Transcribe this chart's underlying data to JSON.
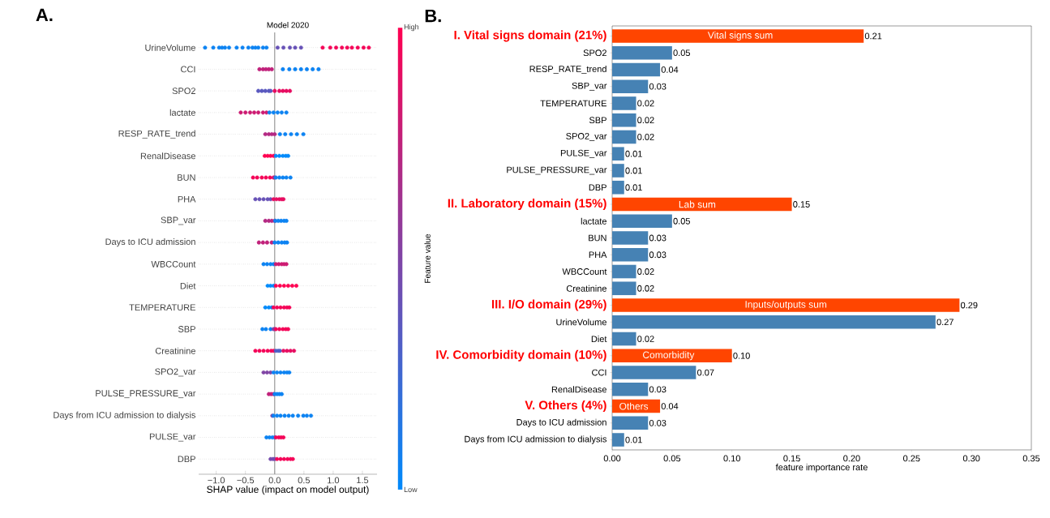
{
  "chart_data": [
    {
      "type": "scatter",
      "title": "Model 2020",
      "xlabel": "SHAP value (impact on model output)",
      "clabel": "Feature value",
      "annotations": [
        "A."
      ],
      "orientation": "horizontal",
      "marker": "circle",
      "grid": "y",
      "categories": [
        "UrineVolume",
        "CCI",
        "SPO2",
        "lactate",
        "RESP_RATE_trend",
        "RenalDisease",
        "BUN",
        "PHA",
        "SBP_var",
        "Days to ICU admission",
        "WBCCount",
        "Diet",
        "TEMPERATURE",
        "SBP",
        "Creatinine",
        "SPO2_var",
        "PULSE_PRESSURE_var",
        "Days from ICU admission to dialysis",
        "PULSE_var",
        "DBP"
      ],
      "xlim": [
        -1.3,
        1.75
      ],
      "xticks": [
        {
          "value": -1,
          "label": "−1.0"
        },
        {
          "value": -0.5,
          "label": "−0.5"
        },
        {
          "value": 0,
          "label": "0.0"
        },
        {
          "value": 0.5,
          "label": "0.5"
        },
        {
          "value": 1,
          "label": "1.0"
        },
        {
          "value": 1.5,
          "label": "1.5"
        }
      ],
      "clim": [
        0,
        1
      ],
      "cticks": [
        {
          "value": 0,
          "label": "Low"
        },
        {
          "value": 1,
          "label": "High"
        }
      ],
      "ref_lines": [
        {
          "axis": "x",
          "value": 0,
          "color": "#999999"
        }
      ],
      "series": [
        {
          "x": [
            "UrineVolume",
            "UrineVolume",
            "UrineVolume",
            "UrineVolume",
            "UrineVolume",
            "UrineVolume",
            "UrineVolume",
            "UrineVolume",
            "UrineVolume",
            "UrineVolume",
            "UrineVolume",
            "UrineVolume",
            "UrineVolume",
            "UrineVolume",
            "UrineVolume",
            "UrineVolume",
            "UrineVolume",
            "UrineVolume",
            "UrineVolume",
            "UrineVolume",
            "UrineVolume",
            "UrineVolume",
            "UrineVolume",
            "UrineVolume",
            "UrineVolume",
            "UrineVolume",
            "UrineVolume",
            "UrineVolume",
            "CCI",
            "CCI",
            "CCI",
            "CCI",
            "CCI",
            "CCI",
            "CCI",
            "CCI",
            "CCI",
            "CCI",
            "CCI",
            "CCI",
            "SPO2",
            "SPO2",
            "SPO2",
            "SPO2",
            "SPO2",
            "SPO2",
            "SPO2",
            "SPO2",
            "SPO2",
            "SPO2",
            "lactate",
            "lactate",
            "lactate",
            "lactate",
            "lactate",
            "lactate",
            "lactate",
            "lactate",
            "lactate",
            "lactate",
            "lactate",
            "lactate",
            "RESP_RATE_trend",
            "RESP_RATE_trend",
            "RESP_RATE_trend",
            "RESP_RATE_trend",
            "RESP_RATE_trend",
            "RESP_RATE_trend",
            "RESP_RATE_trend",
            "RESP_RATE_trend",
            "RESP_RATE_trend",
            "RenalDisease",
            "RenalDisease",
            "RenalDisease",
            "RenalDisease",
            "RenalDisease",
            "RenalDisease",
            "RenalDisease",
            "RenalDisease",
            "RenalDisease",
            "BUN",
            "BUN",
            "BUN",
            "BUN",
            "BUN",
            "BUN",
            "BUN",
            "BUN",
            "BUN",
            "BUN",
            "BUN",
            "BUN",
            "PHA",
            "PHA",
            "PHA",
            "PHA",
            "PHA",
            "PHA",
            "PHA",
            "PHA",
            "PHA",
            "PHA",
            "SBP_var",
            "SBP_var",
            "SBP_var",
            "SBP_var",
            "SBP_var",
            "SBP_var",
            "SBP_var",
            "SBP_var",
            "SBP_var",
            "Days to ICU admission",
            "Days to ICU admission",
            "Days to ICU admission",
            "Days to ICU admission",
            "Days to ICU admission",
            "Days to ICU admission",
            "Days to ICU admission",
            "Days to ICU admission",
            "Days to ICU admission",
            "WBCCount",
            "WBCCount",
            "WBCCount",
            "WBCCount",
            "WBCCount",
            "WBCCount",
            "WBCCount",
            "WBCCount",
            "WBCCount",
            "Diet",
            "Diet",
            "Diet",
            "Diet",
            "Diet",
            "Diet",
            "Diet",
            "Diet",
            "Diet",
            "TEMPERATURE",
            "TEMPERATURE",
            "TEMPERATURE",
            "TEMPERATURE",
            "TEMPERATURE",
            "TEMPERATURE",
            "TEMPERATURE",
            "TEMPERATURE",
            "TEMPERATURE",
            "SBP",
            "SBP",
            "SBP",
            "SBP",
            "SBP",
            "SBP",
            "SBP",
            "SBP",
            "SBP",
            "SBP",
            "Creatinine",
            "Creatinine",
            "Creatinine",
            "Creatinine",
            "Creatinine",
            "Creatinine",
            "Creatinine",
            "Creatinine",
            "Creatinine",
            "Creatinine",
            "Creatinine",
            "Creatinine",
            "Creatinine",
            "SPO2_var",
            "SPO2_var",
            "SPO2_var",
            "SPO2_var",
            "SPO2_var",
            "SPO2_var",
            "SPO2_var",
            "SPO2_var",
            "SPO2_var",
            "PULSE_PRESSURE_var",
            "PULSE_PRESSURE_var",
            "PULSE_PRESSURE_var",
            "PULSE_PRESSURE_var",
            "PULSE_PRESSURE_var",
            "PULSE_PRESSURE_var",
            "PULSE_PRESSURE_var",
            "Days from ICU admission to dialysis",
            "Days from ICU admission to dialysis",
            "Days from ICU admission to dialysis",
            "Days from ICU admission to dialysis",
            "Days from ICU admission to dialysis",
            "Days from ICU admission to dialysis",
            "Days from ICU admission to dialysis",
            "Days from ICU admission to dialysis",
            "Days from ICU admission to dialysis",
            "Days from ICU admission to dialysis",
            "Days from ICU admission to dialysis",
            "PULSE_var",
            "PULSE_var",
            "PULSE_var",
            "PULSE_var",
            "PULSE_var",
            "PULSE_var",
            "PULSE_var",
            "PULSE_var",
            "DBP",
            "DBP",
            "DBP",
            "DBP",
            "DBP",
            "DBP",
            "DBP",
            "DBP",
            "DBP"
          ],
          "values": [
            -1.19,
            -1.05,
            -0.95,
            -0.9,
            -0.85,
            -0.78,
            -0.65,
            -0.55,
            -0.45,
            -0.38,
            -0.33,
            -0.28,
            -0.2,
            -0.14,
            0.05,
            0.15,
            0.26,
            0.35,
            0.45,
            0.82,
            0.95,
            1.05,
            1.15,
            1.24,
            1.32,
            1.42,
            1.52,
            1.61,
            -0.26,
            -0.2,
            -0.15,
            -0.1,
            -0.05,
            0.14,
            0.25,
            0.35,
            0.45,
            0.55,
            0.65,
            0.75,
            -0.28,
            -0.22,
            -0.16,
            -0.1,
            -0.07,
            0.0,
            0.08,
            0.14,
            0.2,
            0.26,
            -0.58,
            -0.5,
            -0.42,
            -0.35,
            -0.28,
            -0.2,
            -0.14,
            -0.09,
            -0.02,
            0.05,
            0.12,
            0.2,
            -0.16,
            -0.1,
            -0.05,
            0.0,
            0.09,
            0.18,
            0.28,
            0.38,
            0.49,
            -0.17,
            -0.12,
            -0.07,
            -0.02,
            0.02,
            0.08,
            0.14,
            0.19,
            0.23,
            -0.37,
            -0.3,
            -0.22,
            -0.15,
            -0.08,
            -0.02,
            0.0,
            0.02,
            0.08,
            0.14,
            0.2,
            0.27,
            -0.33,
            -0.26,
            -0.19,
            -0.12,
            -0.07,
            -0.02,
            0.03,
            0.08,
            0.12,
            0.15,
            -0.16,
            -0.1,
            -0.05,
            0.0,
            0.01,
            0.06,
            0.11,
            0.16,
            0.2,
            -0.27,
            -0.2,
            -0.13,
            -0.05,
            0.0,
            0.06,
            0.12,
            0.17,
            0.21,
            -0.19,
            -0.13,
            -0.07,
            -0.02,
            0.02,
            0.07,
            0.12,
            0.16,
            0.2,
            -0.12,
            -0.07,
            -0.02,
            0.02,
            0.09,
            0.16,
            0.23,
            0.3,
            0.37,
            -0.16,
            -0.1,
            -0.05,
            -0.02,
            0.04,
            0.1,
            0.16,
            0.21,
            0.25,
            -0.21,
            -0.15,
            -0.07,
            -0.02,
            0.0,
            0.02,
            0.08,
            0.14,
            0.19,
            0.23,
            -0.33,
            -0.26,
            -0.19,
            -0.12,
            -0.06,
            -0.02,
            0.02,
            0.06,
            0.09,
            0.15,
            0.21,
            0.27,
            0.33,
            -0.19,
            -0.13,
            -0.07,
            -0.02,
            0.04,
            0.1,
            0.16,
            0.21,
            0.25,
            -0.1,
            -0.06,
            -0.02,
            0.0,
            0.04,
            0.08,
            0.12,
            -0.04,
            -0.02,
            0.04,
            0.1,
            0.17,
            0.24,
            0.31,
            0.4,
            0.49,
            0.55,
            0.62,
            -0.14,
            -0.09,
            -0.04,
            0.0,
            0.02,
            0.07,
            0.11,
            0.15,
            -0.07,
            -0.03,
            0.0,
            0.04,
            0.1,
            0.16,
            0.22,
            0.27,
            0.31
          ],
          "cvalues": [
            0.05,
            0.05,
            0.05,
            0.05,
            0.05,
            0.05,
            0.05,
            0.05,
            0.05,
            0.05,
            0.05,
            0.05,
            0.05,
            0.05,
            0.4,
            0.4,
            0.4,
            0.4,
            0.4,
            0.95,
            0.95,
            0.95,
            0.95,
            0.95,
            0.95,
            0.95,
            0.95,
            0.95,
            0.75,
            0.75,
            0.75,
            0.75,
            0.75,
            0.05,
            0.05,
            0.05,
            0.05,
            0.05,
            0.05,
            0.05,
            0.35,
            0.35,
            0.35,
            0.35,
            0.35,
            0.9,
            0.9,
            0.9,
            0.9,
            0.9,
            0.8,
            0.8,
            0.8,
            0.8,
            0.8,
            0.8,
            0.8,
            0.05,
            0.05,
            0.05,
            0.05,
            0.05,
            0.7,
            0.7,
            0.7,
            0.7,
            0.05,
            0.05,
            0.05,
            0.05,
            0.05,
            1,
            1,
            1,
            1,
            0,
            0,
            0,
            0,
            0,
            0.95,
            0.95,
            0.95,
            0.95,
            0.95,
            0.95,
            0.5,
            0.05,
            0.05,
            0.05,
            0.05,
            0.05,
            0.4,
            0.4,
            0.4,
            0.4,
            0.4,
            0.9,
            0.9,
            0.9,
            0.9,
            0.9,
            0.7,
            0.7,
            0.7,
            0.7,
            0.05,
            0.05,
            0.05,
            0.05,
            0.05,
            0.75,
            0.75,
            0.75,
            0.75,
            0.05,
            0.05,
            0.05,
            0.05,
            0.05,
            0.05,
            0.05,
            0.05,
            0.05,
            0.8,
            0.8,
            0.8,
            0.8,
            0.8,
            0,
            0,
            0,
            1,
            1,
            1,
            1,
            1,
            1,
            0,
            0,
            0,
            0.95,
            0.95,
            0.95,
            0.95,
            0.95,
            0.95,
            0.05,
            0.05,
            0.05,
            0.5,
            0.5,
            0.95,
            0.95,
            0.95,
            0.95,
            0.95,
            0.95,
            0.95,
            0.95,
            0.95,
            0.95,
            0.95,
            0.3,
            0.3,
            0.3,
            0.9,
            0.9,
            0.9,
            0.9,
            0.5,
            0.5,
            0.5,
            0.05,
            0.05,
            0.05,
            0.05,
            0.05,
            0.05,
            0.75,
            0.75,
            0.75,
            0.05,
            0.05,
            0.05,
            0.05,
            0.5,
            0.05,
            0.05,
            0.05,
            0.05,
            0.05,
            0.05,
            0.05,
            0.05,
            0.05,
            0.05,
            0.05,
            0.05,
            0.05,
            0.05,
            0.95,
            0.95,
            0.95,
            0.95,
            0.45,
            0.45,
            0.45,
            0.95,
            0.95,
            0.95,
            0.95,
            0.95,
            0.95
          ]
        }
      ]
    },
    {
      "type": "bar",
      "orientation": "horizontal",
      "xlabel": "feature importance rate",
      "categories": [
        "I. Vital signs domain (21%)",
        "SPO2",
        "RESP_RATE_trend",
        "SBP_var",
        "TEMPERATURE",
        "SBP",
        "SPO2_var",
        "PULSE_var",
        "PULSE_PRESSURE_var",
        "DBP",
        "II. Laboratory domain (15%)",
        "lactate",
        "BUN",
        "PHA",
        "WBCCount",
        "Creatinine",
        "III. I/O domain (29%)",
        "UrineVolume",
        "Diet",
        "IV. Comorbidity domain (10%)",
        "CCI",
        "RenalDisease",
        "V. Others (4%)",
        "Days to ICU admission",
        "Days from ICU admission to dialysis"
      ],
      "values": [
        0.21,
        0.05,
        0.04,
        0.03,
        0.02,
        0.02,
        0.02,
        0.01,
        0.01,
        0.01,
        0.15,
        0.05,
        0.03,
        0.03,
        0.02,
        0.02,
        0.29,
        0.27,
        0.02,
        0.1,
        0.07,
        0.03,
        0.04,
        0.03,
        0.01
      ],
      "value_labels": [
        "0.21",
        "0.05",
        "0.04",
        "0.03",
        "0.02",
        "0.02",
        "0.02",
        "0.01",
        "0.01",
        "0.01",
        "0.15",
        "0.05",
        "0.03",
        "0.03",
        "0.02",
        "0.02",
        "0.29",
        "0.27",
        "0.02",
        "0.10",
        "0.07",
        "0.03",
        "0.04",
        "0.03",
        "0.01"
      ],
      "colors": [
        "#ff4500",
        "#4682b4",
        "#4682b4",
        "#4682b4",
        "#4682b4",
        "#4682b4",
        "#4682b4",
        "#4682b4",
        "#4682b4",
        "#4682b4",
        "#ff4500",
        "#4682b4",
        "#4682b4",
        "#4682b4",
        "#4682b4",
        "#4682b4",
        "#ff4500",
        "#4682b4",
        "#4682b4",
        "#ff4500",
        "#4682b4",
        "#4682b4",
        "#ff4500",
        "#4682b4",
        "#4682b4"
      ],
      "xlim": [
        0,
        0.35
      ],
      "xticks": [
        {
          "value": 0,
          "label": "0.00"
        },
        {
          "value": 0.05,
          "label": "0.05"
        },
        {
          "value": 0.1,
          "label": "0.10"
        },
        {
          "value": 0.15,
          "label": "0.15"
        },
        {
          "value": 0.2,
          "label": "0.20"
        },
        {
          "value": 0.25,
          "label": "0.25"
        },
        {
          "value": 0.3,
          "label": "0.30"
        },
        {
          "value": 0.35,
          "label": "0.35"
        }
      ],
      "annotations": [
        "B.",
        {
          "text": "Vital signs sum",
          "x": 0.107,
          "y": "I. Vital signs domain (21%)"
        },
        {
          "text": "Lab sum",
          "x": 0.071,
          "y": "II. Laboratory domain (15%)"
        },
        {
          "text": "Inputs/outputs sum",
          "x": 0.145,
          "y": "III. I/O domain (29%)"
        },
        {
          "text": "Comorbidity",
          "x": 0.047,
          "y": "IV. Comorbidity domain (10%)"
        },
        {
          "text": "Others",
          "x": 0.018,
          "y": "V. Others (4%)"
        }
      ]
    }
  ]
}
